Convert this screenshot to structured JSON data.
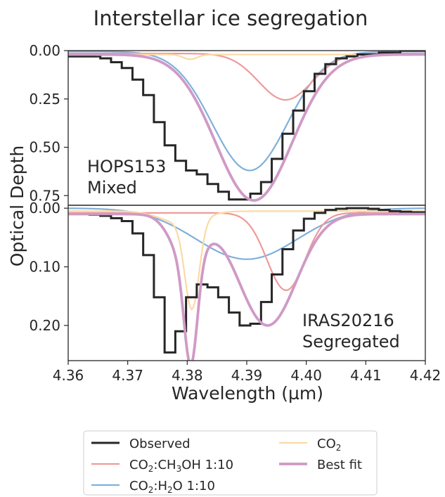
{
  "chart_data": {
    "type": "line",
    "title": "Interstellar ice segregation",
    "xlabel": "Wavelength (µm)",
    "ylabel": "Optical Depth",
    "xlim": [
      4.36,
      4.42
    ],
    "x_ticks": [
      "4.36",
      "4.37",
      "4.38",
      "4.39",
      "4.40",
      "4.41",
      "4.42"
    ],
    "legend": {
      "placement": "below",
      "entries": [
        {
          "key": "observed",
          "parts": [
            {
              "t": "Observed"
            }
          ]
        },
        {
          "key": "ch3oh",
          "parts": [
            {
              "t": "CO"
            },
            {
              "t": "2",
              "sub": true
            },
            {
              "t": ":CH"
            },
            {
              "t": "3",
              "sub": true
            },
            {
              "t": "OH 1:10"
            }
          ]
        },
        {
          "key": "h2o",
          "parts": [
            {
              "t": "CO"
            },
            {
              "t": "2",
              "sub": true
            },
            {
              "t": ":H"
            },
            {
              "t": "2",
              "sub": true
            },
            {
              "t": "O 1:10"
            }
          ]
        },
        {
          "key": "co2",
          "parts": [
            {
              "t": "CO"
            },
            {
              "t": "2",
              "sub": true
            }
          ]
        },
        {
          "key": "bestfit",
          "parts": [
            {
              "t": "Best fit"
            }
          ]
        }
      ]
    },
    "colors": {
      "observed": "#262626",
      "ch3oh": "#ef9a9a",
      "h2o": "#7fb0dc",
      "co2": "#fcd9a4",
      "bestfit": "#cf9ac6"
    },
    "panels": [
      {
        "label": [
          "HOPS153",
          "Mixed"
        ],
        "ylim": [
          0.0,
          0.8
        ],
        "y_ticks": [
          {
            "v": 0.0,
            "label": "0.00"
          },
          {
            "v": 0.25,
            "label": "0.25"
          },
          {
            "v": 0.5,
            "label": "0.50"
          },
          {
            "v": 0.75,
            "label": "0.75"
          }
        ],
        "observed": {
          "edges": [
            4.36,
            4.3618,
            4.3636,
            4.3654,
            4.3672,
            4.369,
            4.3708,
            4.3726,
            4.3744,
            4.3762,
            4.378,
            4.3798,
            4.3816,
            4.3834,
            4.3852,
            4.387,
            4.3888,
            4.3906,
            4.3924,
            4.3942,
            4.396,
            4.3978,
            4.3996,
            4.4014,
            4.4032,
            4.405,
            4.4068,
            4.4086,
            4.4104,
            4.4122,
            4.414,
            4.4158,
            4.4176,
            4.42
          ],
          "values": [
            0.03,
            0.03,
            0.03,
            0.04,
            0.06,
            0.09,
            0.15,
            0.23,
            0.37,
            0.49,
            0.57,
            0.62,
            0.64,
            0.69,
            0.73,
            0.77,
            0.77,
            0.74,
            0.68,
            0.56,
            0.43,
            0.31,
            0.21,
            0.12,
            0.07,
            0.04,
            0.03,
            0.02,
            0.02,
            0.01,
            0.01,
            0.0,
            0.0
          ]
        },
        "components": [
          {
            "key": "h2o",
            "base": 0.005,
            "peaks": [
              {
                "a": 0.615,
                "c": 4.3905,
                "w": 0.0063
              }
            ]
          },
          {
            "key": "ch3oh",
            "base": 0.015,
            "peaks": [
              {
                "a": 0.24,
                "c": 4.3965,
                "w": 0.0045
              }
            ]
          },
          {
            "key": "co2",
            "base": 0.02,
            "peaks": [
              {
                "a": 0.025,
                "c": 4.3805,
                "w": 0.0012
              }
            ]
          }
        ],
        "bestfit": {
          "base": 0.02,
          "peaks": [
            {
              "a": 0.755,
              "c": 4.3912,
              "w": 0.0064
            }
          ]
        }
      },
      {
        "label": [
          "IRAS20216",
          "Segregated"
        ],
        "ylim": [
          -0.005,
          0.26
        ],
        "y_ticks": [
          {
            "v": 0.0,
            "label": "0.00"
          },
          {
            "v": 0.1,
            "label": "0.10"
          },
          {
            "v": 0.2,
            "label": "0.20"
          }
        ],
        "observed": {
          "edges": [
            4.36,
            4.3618,
            4.3636,
            4.3654,
            4.3672,
            4.369,
            4.3708,
            4.3726,
            4.3744,
            4.3762,
            4.378,
            4.3798,
            4.3816,
            4.3834,
            4.3852,
            4.387,
            4.3888,
            4.3906,
            4.3924,
            4.3942,
            4.396,
            4.3978,
            4.3996,
            4.4014,
            4.4032,
            4.405,
            4.4068,
            4.4086,
            4.4104,
            4.4122,
            4.414,
            4.4158,
            4.4176,
            4.42
          ],
          "values": [
            0.01,
            0.01,
            0.011,
            0.013,
            0.017,
            0.022,
            0.043,
            0.08,
            0.152,
            0.246,
            0.21,
            0.152,
            0.13,
            0.135,
            0.152,
            0.178,
            0.2,
            0.197,
            0.16,
            0.113,
            0.07,
            0.038,
            0.018,
            0.008,
            0.003,
            0.001,
            0.0,
            0.0,
            0.001,
            0.003,
            0.005,
            0.006,
            0.007
          ]
        },
        "components": [
          {
            "key": "h2o",
            "base": 0.0,
            "peaks": [
              {
                "a": 0.087,
                "c": 4.39,
                "w": 0.0085
              }
            ]
          },
          {
            "key": "ch3oh",
            "base": 0.008,
            "peaks": [
              {
                "a": 0.132,
                "c": 4.3966,
                "w": 0.0032
              }
            ]
          },
          {
            "key": "co2",
            "base": 0.005,
            "peaks": [
              {
                "a": 0.15,
                "c": 4.3808,
                "w": 0.0012
              },
              {
                "a": 0.02,
                "c": 4.379,
                "w": 0.0035
              }
            ]
          }
        ],
        "bestfit": {
          "base": 0.01,
          "peaks": [
            {
              "a": 0.175,
              "c": 4.3806,
              "w": 0.0011
            },
            {
              "a": 0.08,
              "c": 4.38,
              "w": 0.0026
            },
            {
              "a": 0.19,
              "c": 4.3935,
              "w": 0.0048
            }
          ]
        }
      }
    ]
  }
}
